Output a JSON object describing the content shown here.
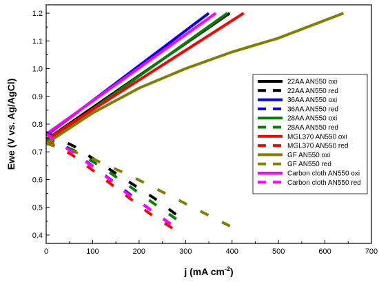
{
  "chart_data": {
    "type": "line",
    "title": "",
    "xlabel": "j (mA cm",
    "xlabel_sup": "-2",
    "xlabel_end": ")",
    "ylabel": "Ewe (V vs. Ag/AgCl)",
    "xlim": [
      0,
      700
    ],
    "ylim": [
      0.37,
      1.23
    ],
    "xticks": [
      0,
      100,
      200,
      300,
      400,
      500,
      600,
      700
    ],
    "yticks": [
      0.4,
      0.5,
      0.6,
      0.7,
      0.8,
      0.9,
      1.0,
      1.1,
      1.2
    ],
    "ytick_labels": [
      "0.4",
      "0.5",
      "0.6",
      "0.7",
      "0.8",
      "0.9",
      "1.0",
      "1.1",
      "1.2"
    ],
    "grid": false,
    "legend_position": "right",
    "series": [
      {
        "name": "22AA AN550 oxi",
        "color": "#000000",
        "dash": "solid",
        "x": [
          5,
          395
        ],
        "y": [
          0.75,
          1.2
        ]
      },
      {
        "name": "22AA AN550 red",
        "color": "#000000",
        "dash": "dashed",
        "x": [
          0,
          60,
          120,
          180,
          235,
          295
        ],
        "y": [
          0.77,
          0.72,
          0.655,
          0.59,
          0.53,
          0.455
        ]
      },
      {
        "name": "36AA AN550 oxi",
        "color": "#0000ff",
        "dash": "solid",
        "x": [
          5,
          350
        ],
        "y": [
          0.765,
          1.2
        ]
      },
      {
        "name": "36AA AN550 red",
        "color": "#0000ff",
        "dash": "dashed",
        "x": [
          0,
          55,
          115,
          170,
          225,
          285
        ],
        "y": [
          0.765,
          0.705,
          0.63,
          0.56,
          0.49,
          0.42
        ]
      },
      {
        "name": "28AA AN550 oxi",
        "color": "#008000",
        "dash": "solid",
        "x": [
          5,
          390
        ],
        "y": [
          0.74,
          1.2
        ]
      },
      {
        "name": "28AA AN550 red",
        "color": "#008000",
        "dash": "dashed",
        "x": [
          0,
          60,
          120,
          180,
          235,
          295
        ],
        "y": [
          0.75,
          0.705,
          0.645,
          0.575,
          0.51,
          0.44
        ]
      },
      {
        "name": "MGL370 AN550 oxi",
        "color": "#ff0000",
        "dash": "solid",
        "x": [
          5,
          425
        ],
        "y": [
          0.75,
          1.2
        ]
      },
      {
        "name": "MGL370 AN550 red",
        "color": "#ff0000",
        "dash": "dashed",
        "x": [
          0,
          55,
          115,
          170,
          225,
          290
        ],
        "y": [
          0.74,
          0.69,
          0.615,
          0.545,
          0.475,
          0.405
        ]
      },
      {
        "name": "GF AN550 oxi",
        "color": "#808000",
        "dash": "solid",
        "x": [
          0,
          100,
          200,
          300,
          400,
          500,
          640
        ],
        "y": [
          0.73,
          0.84,
          0.93,
          1.0,
          1.06,
          1.11,
          1.2
        ]
      },
      {
        "name": "GF AN550 red",
        "color": "#808000",
        "dash": "dashed",
        "x": [
          0,
          80,
          180,
          280,
          410
        ],
        "y": [
          0.73,
          0.69,
          0.615,
          0.53,
          0.42
        ]
      },
      {
        "name": "Carbon cloth AN550 oxi",
        "color": "#ff00ff",
        "dash": "solid",
        "x": [
          5,
          365
        ],
        "y": [
          0.77,
          1.2
        ]
      },
      {
        "name": "Carbon cloth AN550 red",
        "color": "#ff00ff",
        "dash": "dashed",
        "x": [
          0,
          55,
          115,
          170,
          230,
          290
        ],
        "y": [
          0.765,
          0.7,
          0.63,
          0.555,
          0.485,
          0.415
        ]
      }
    ]
  }
}
